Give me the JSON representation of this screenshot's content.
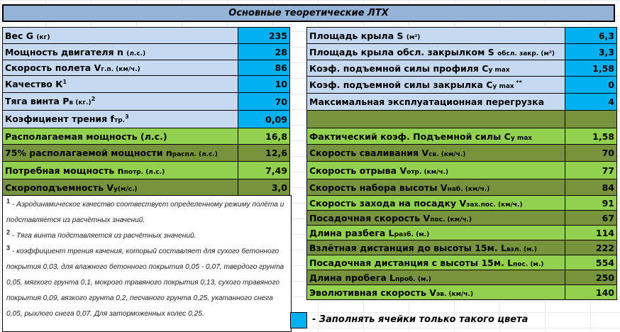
{
  "title": "Основные теоретические ЛТХ",
  "colors": {
    "header": "#95b3d7",
    "input_label": "#c5d9f1",
    "input_value": "#00b0f0",
    "result_light": "#92d050",
    "result_dark": "#77933c"
  },
  "left_rows": [
    {
      "name": "Вес G ",
      "sub": "",
      "unit": "(кг)",
      "sup": "",
      "value": "235",
      "style": "input"
    },
    {
      "name": "Мощность двигателя n ",
      "sub": "",
      "unit": "(л.с.)",
      "sup": "",
      "value": "28",
      "style": "input"
    },
    {
      "name": "Скорость полета V",
      "sub": "г.п. ",
      "unit": "(км/ч.)",
      "sup": "",
      "value": "86",
      "style": "input"
    },
    {
      "name": "Качество К",
      "sub": "",
      "unit": "",
      "sup": "1",
      "value": "10",
      "style": "input"
    },
    {
      "name": "Тяга винта P",
      "sub": "в ",
      "unit": "(кг.)",
      "sup": "2",
      "value": "70",
      "style": "input"
    },
    {
      "name": "Коэфициент трения f",
      "sub": "тр.",
      "unit": "",
      "sup": "3",
      "value": "0,09",
      "style": "input"
    },
    {
      "name": "Располагаемая мощность (л.с.)",
      "sub": "",
      "unit": "",
      "sup": "",
      "value": "16,8",
      "style": "light"
    },
    {
      "name": "75% располагаемой мощности n",
      "sub": "распл. ",
      "unit": "(л.с.)",
      "sup": "",
      "value": "12,6",
      "style": "dark"
    },
    {
      "name": "Потребная мощность n",
      "sub": "потр. ",
      "unit": "(л.с.)",
      "sup": "",
      "value": "7,49",
      "style": "light"
    },
    {
      "name": "Скороподъемность V",
      "sub": "y",
      "unit": "(м/с.)",
      "sup": "",
      "value": "3,0",
      "style": "dark"
    }
  ],
  "right_rows": [
    {
      "name": "Площадь крыла S ",
      "sub": "",
      "unit": "(м²)",
      "sup": "",
      "value": "6,3",
      "style": "input"
    },
    {
      "name": "Площадь крыла обсл. закрылком S ",
      "sub": "обсл. закр. ",
      "unit": "(м²)",
      "sup": "",
      "value": "3,3",
      "style": "input"
    },
    {
      "name": "Коэф. подъемной силы профиля C",
      "sub": "y max",
      "unit": "",
      "sup": "",
      "value": "1,58",
      "style": "input"
    },
    {
      "name": "Коэф. подъемной силы закрылка C",
      "sub": "y max",
      "unit": "",
      "sup": " **",
      "value": "0",
      "style": "input"
    },
    {
      "name": "Максимальная эксплуатационная перегрузка",
      "sub": "",
      "unit": "",
      "sup": "",
      "value": "4",
      "style": "input"
    },
    {
      "name": "",
      "sub": "",
      "unit": "",
      "sup": "",
      "value": "",
      "style": "dark"
    },
    {
      "name": "Фактический коэф. Подъемной силы C",
      "sub": "y max",
      "unit": "",
      "sup": "",
      "value": "1,58",
      "style": "light"
    },
    {
      "name": "Скорость сваливания V",
      "sub": "св. ",
      "unit": "(км/ч.)",
      "sup": "",
      "value": "70",
      "style": "dark"
    },
    {
      "name": "Скорость отрыва V",
      "sub": "отр. ",
      "unit": "(км/ч.)",
      "sup": "",
      "value": "77",
      "style": "light"
    },
    {
      "name": "Скорость набора высоты V",
      "sub": "наб. ",
      "unit": "(км/ч.)",
      "sup": "",
      "value": "84",
      "style": "dark"
    },
    {
      "name": "Скорость захода на посадку V",
      "sub": "зах.пос. ",
      "unit": "(км/ч.)",
      "sup": "",
      "value": "91",
      "style": "light"
    },
    {
      "name": "Посадочная скорость V",
      "sub": "пос. ",
      "unit": "(км/ч.)",
      "sup": "",
      "value": "67",
      "style": "dark"
    },
    {
      "name": "Длина разбега L",
      "sub": "разб. ",
      "unit": "(м.)",
      "sup": "",
      "value": "114",
      "style": "light"
    },
    {
      "name": "Взлётная дистанция до высоты 15м. L",
      "sub": "взл. ",
      "unit": "(м.)",
      "sup": "",
      "value": "222",
      "style": "dark"
    },
    {
      "name": "Посадочная дистанция с высоты 15м. L",
      "sub": "пос. ",
      "unit": "(м.)",
      "sup": "",
      "value": "554",
      "style": "light"
    },
    {
      "name": "Длина пробега L",
      "sub": "проб. ",
      "unit": "(м.)",
      "sup": "",
      "value": "250",
      "style": "dark"
    },
    {
      "name": "Эволютивная скорость V",
      "sub": "эв. ",
      "unit": "(км/ч.)",
      "sup": "",
      "value": "140",
      "style": "light"
    }
  ],
  "notes": [
    {
      "mark": "1",
      "text": " - Аэродинамическое качество соотвествует определенному режиму полёта и подставляется из расчётных значений."
    },
    {
      "mark": "2",
      "text": " - Тяга винта подставляется из расчётных значений."
    },
    {
      "mark": "3",
      "text": " - коэффициент трения качения, который составляет для сухого бетонного покрытия 0,03, для влажного бетонного покрытия 0,05 - 0,07, твердого грунта 0,05, мягкого грунта 0,1, мокрого травяного покрытия 0,13, сухого травяного покрытия 0,09, вязкого грунта 0,2, песчаного грунта 0,25, укатанного снега 0,05, рыхлого снега 0,07. Для заторможенных колес 0,25."
    }
  ],
  "legend": "- Заполнять ячейки только такого цвета"
}
